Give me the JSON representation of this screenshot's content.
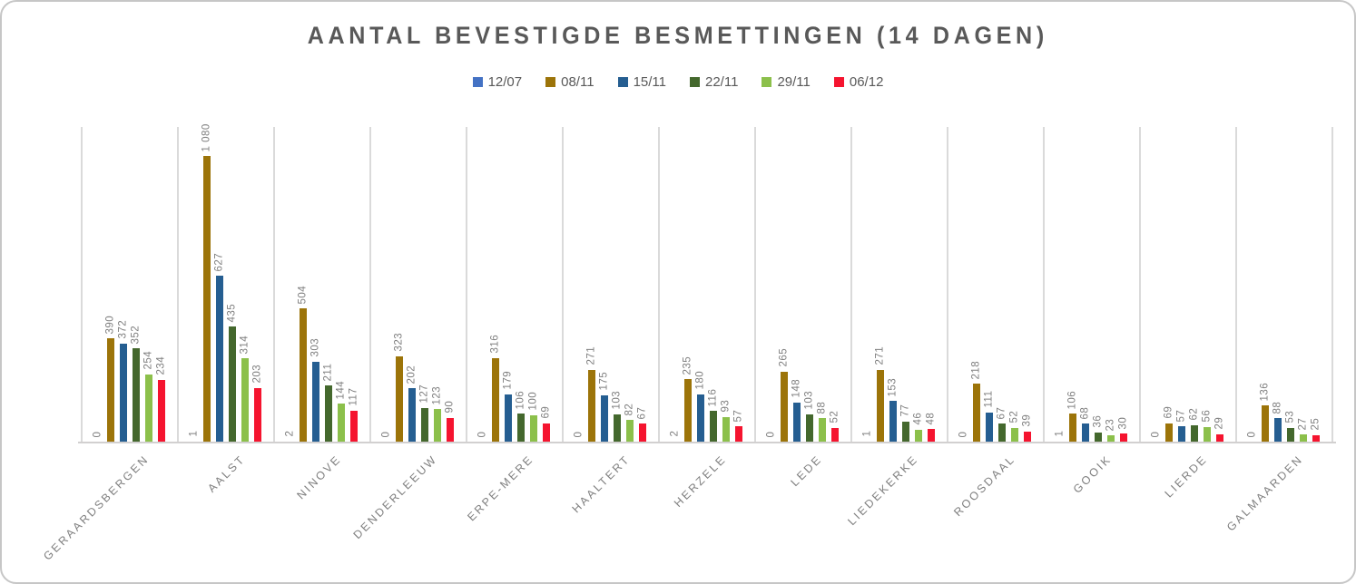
{
  "chart_data": {
    "type": "bar",
    "title": "AANTAL BEVESTIGDE BESMETTINGEN (14 DAGEN)",
    "xlabel": "",
    "ylabel": "",
    "legend_position": "top",
    "grid": "vertical-category-separators-only",
    "value_axis_visible": false,
    "value_axis_implied_max": 1190,
    "data_labels": "rotated-vertical-above-bars",
    "thousands_separator": "space",
    "categories": [
      "GERAARDSBERGEN",
      "AALST",
      "NINOVE",
      "DENDERLEEUW",
      "ERPE-MERE",
      "HAALTERT",
      "HERZELE",
      "LEDE",
      "LIEDEKERKE",
      "ROOSDAAL",
      "GOOIK",
      "LIERDE",
      "GALMAARDEN"
    ],
    "series": [
      {
        "name": "12/07",
        "color": "#4472C4",
        "values": [
          0,
          1,
          2,
          0,
          0,
          0,
          2,
          0,
          1,
          0,
          1,
          0,
          0
        ]
      },
      {
        "name": "08/11",
        "color": "#9C7409",
        "values": [
          390,
          1080,
          504,
          323,
          316,
          271,
          235,
          265,
          271,
          218,
          106,
          69,
          136
        ]
      },
      {
        "name": "15/11",
        "color": "#255E91",
        "values": [
          372,
          627,
          303,
          202,
          179,
          175,
          180,
          148,
          153,
          111,
          68,
          57,
          88
        ]
      },
      {
        "name": "22/11",
        "color": "#44682D",
        "values": [
          352,
          435,
          211,
          127,
          106,
          103,
          116,
          103,
          77,
          67,
          36,
          62,
          53
        ]
      },
      {
        "name": "29/11",
        "color": "#8CC04B",
        "values": [
          254,
          314,
          144,
          123,
          100,
          82,
          93,
          88,
          46,
          52,
          23,
          56,
          27
        ]
      },
      {
        "name": "06/12",
        "color": "#F5142F",
        "values": [
          234,
          203,
          117,
          90,
          69,
          67,
          57,
          52,
          48,
          39,
          30,
          29,
          25
        ]
      }
    ],
    "colors": {
      "title_text": "#595959",
      "legend_text": "#595959",
      "data_label_text": "#808080",
      "category_label_text": "#7F7F7F",
      "separator_line": "#DADADA",
      "axis_line": "#D2D0D0",
      "card_border": "#C6C6C6",
      "background": "#FFFFFF"
    }
  }
}
